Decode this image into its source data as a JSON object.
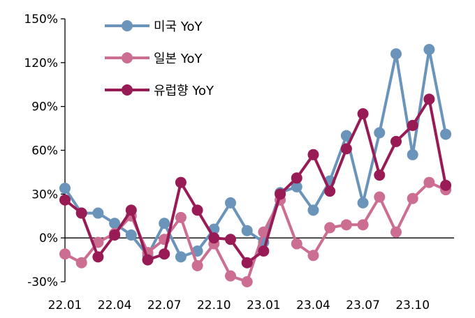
{
  "chart_data": {
    "type": "line",
    "ylim": [
      -30,
      150
    ],
    "y_ticks": [
      -30,
      0,
      30,
      60,
      90,
      120,
      150
    ],
    "y_tick_labels": [
      "-30%",
      "0%",
      "30%",
      "60%",
      "90%",
      "120%",
      "150%"
    ],
    "x_tick_labels": [
      "22.01",
      "22.04",
      "22.07",
      "22.10",
      "23.01",
      "23.04",
      "23.07",
      "23.10"
    ],
    "x_tick_indices": [
      0,
      3,
      6,
      9,
      12,
      15,
      18,
      21
    ],
    "grid": false,
    "legend_position": "top-left",
    "series": [
      {
        "name": "미국 YoY",
        "color": "#6a94b9",
        "values": [
          34,
          17,
          17,
          10,
          2,
          -12,
          10,
          -13,
          -9,
          6,
          24,
          5,
          -3,
          31,
          35,
          19,
          39,
          70,
          24,
          72,
          126,
          57,
          129,
          71
        ]
      },
      {
        "name": "일본 YoY",
        "color": "#cc6d92",
        "values": [
          -11,
          -17,
          -3,
          3,
          15,
          -10,
          -1,
          14,
          -19,
          -4,
          -26,
          -30,
          4,
          26,
          -4,
          -12,
          7,
          9,
          9,
          28,
          4,
          27,
          38,
          33
        ]
      },
      {
        "name": "유럽향 YoY",
        "color": "#981b55",
        "values": [
          26,
          17,
          -13,
          2,
          19,
          -15,
          -11,
          38,
          19,
          0,
          -1,
          -17,
          -9,
          30,
          41,
          57,
          32,
          61,
          85,
          43,
          66,
          77,
          95,
          36
        ]
      }
    ]
  }
}
